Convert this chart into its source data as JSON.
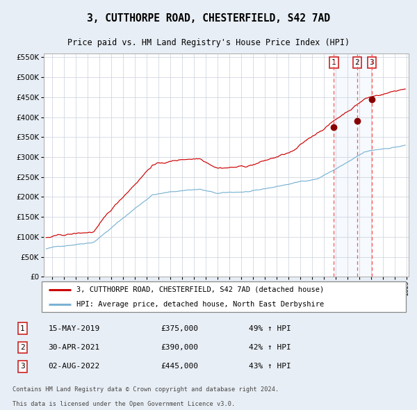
{
  "title": "3, CUTTHORPE ROAD, CHESTERFIELD, S42 7AD",
  "subtitle": "Price paid vs. HM Land Registry's House Price Index (HPI)",
  "legend_line1": "3, CUTTHORPE ROAD, CHESTERFIELD, S42 7AD (detached house)",
  "legend_line2": "HPI: Average price, detached house, North East Derbyshire",
  "footer1": "Contains HM Land Registry data © Crown copyright and database right 2024.",
  "footer2": "This data is licensed under the Open Government Licence v3.0.",
  "sales": [
    {
      "label": "1",
      "date": "15-MAY-2019",
      "price": 375000,
      "hpi_pct": "49% ↑ HPI",
      "x": 2019.37
    },
    {
      "label": "2",
      "date": "30-APR-2021",
      "price": 390000,
      "hpi_pct": "42% ↑ HPI",
      "x": 2021.33
    },
    {
      "label": "3",
      "date": "02-AUG-2022",
      "price": 445000,
      "hpi_pct": "43% ↑ HPI",
      "x": 2022.58
    }
  ],
  "hpi_color": "#7ab3d4",
  "price_color": "#cc0000",
  "marker_color": "#880000",
  "vline_color": "#ff5555",
  "background_color": "#e8eef5",
  "plot_bg": "#ffffff",
  "grid_color": "#c8d0dc",
  "ylim": [
    0,
    560000
  ],
  "yticks": [
    0,
    50000,
    100000,
    150000,
    200000,
    250000,
    300000,
    350000,
    400000,
    450000,
    500000,
    550000
  ],
  "xmin": 1994.8,
  "xmax": 2025.7
}
